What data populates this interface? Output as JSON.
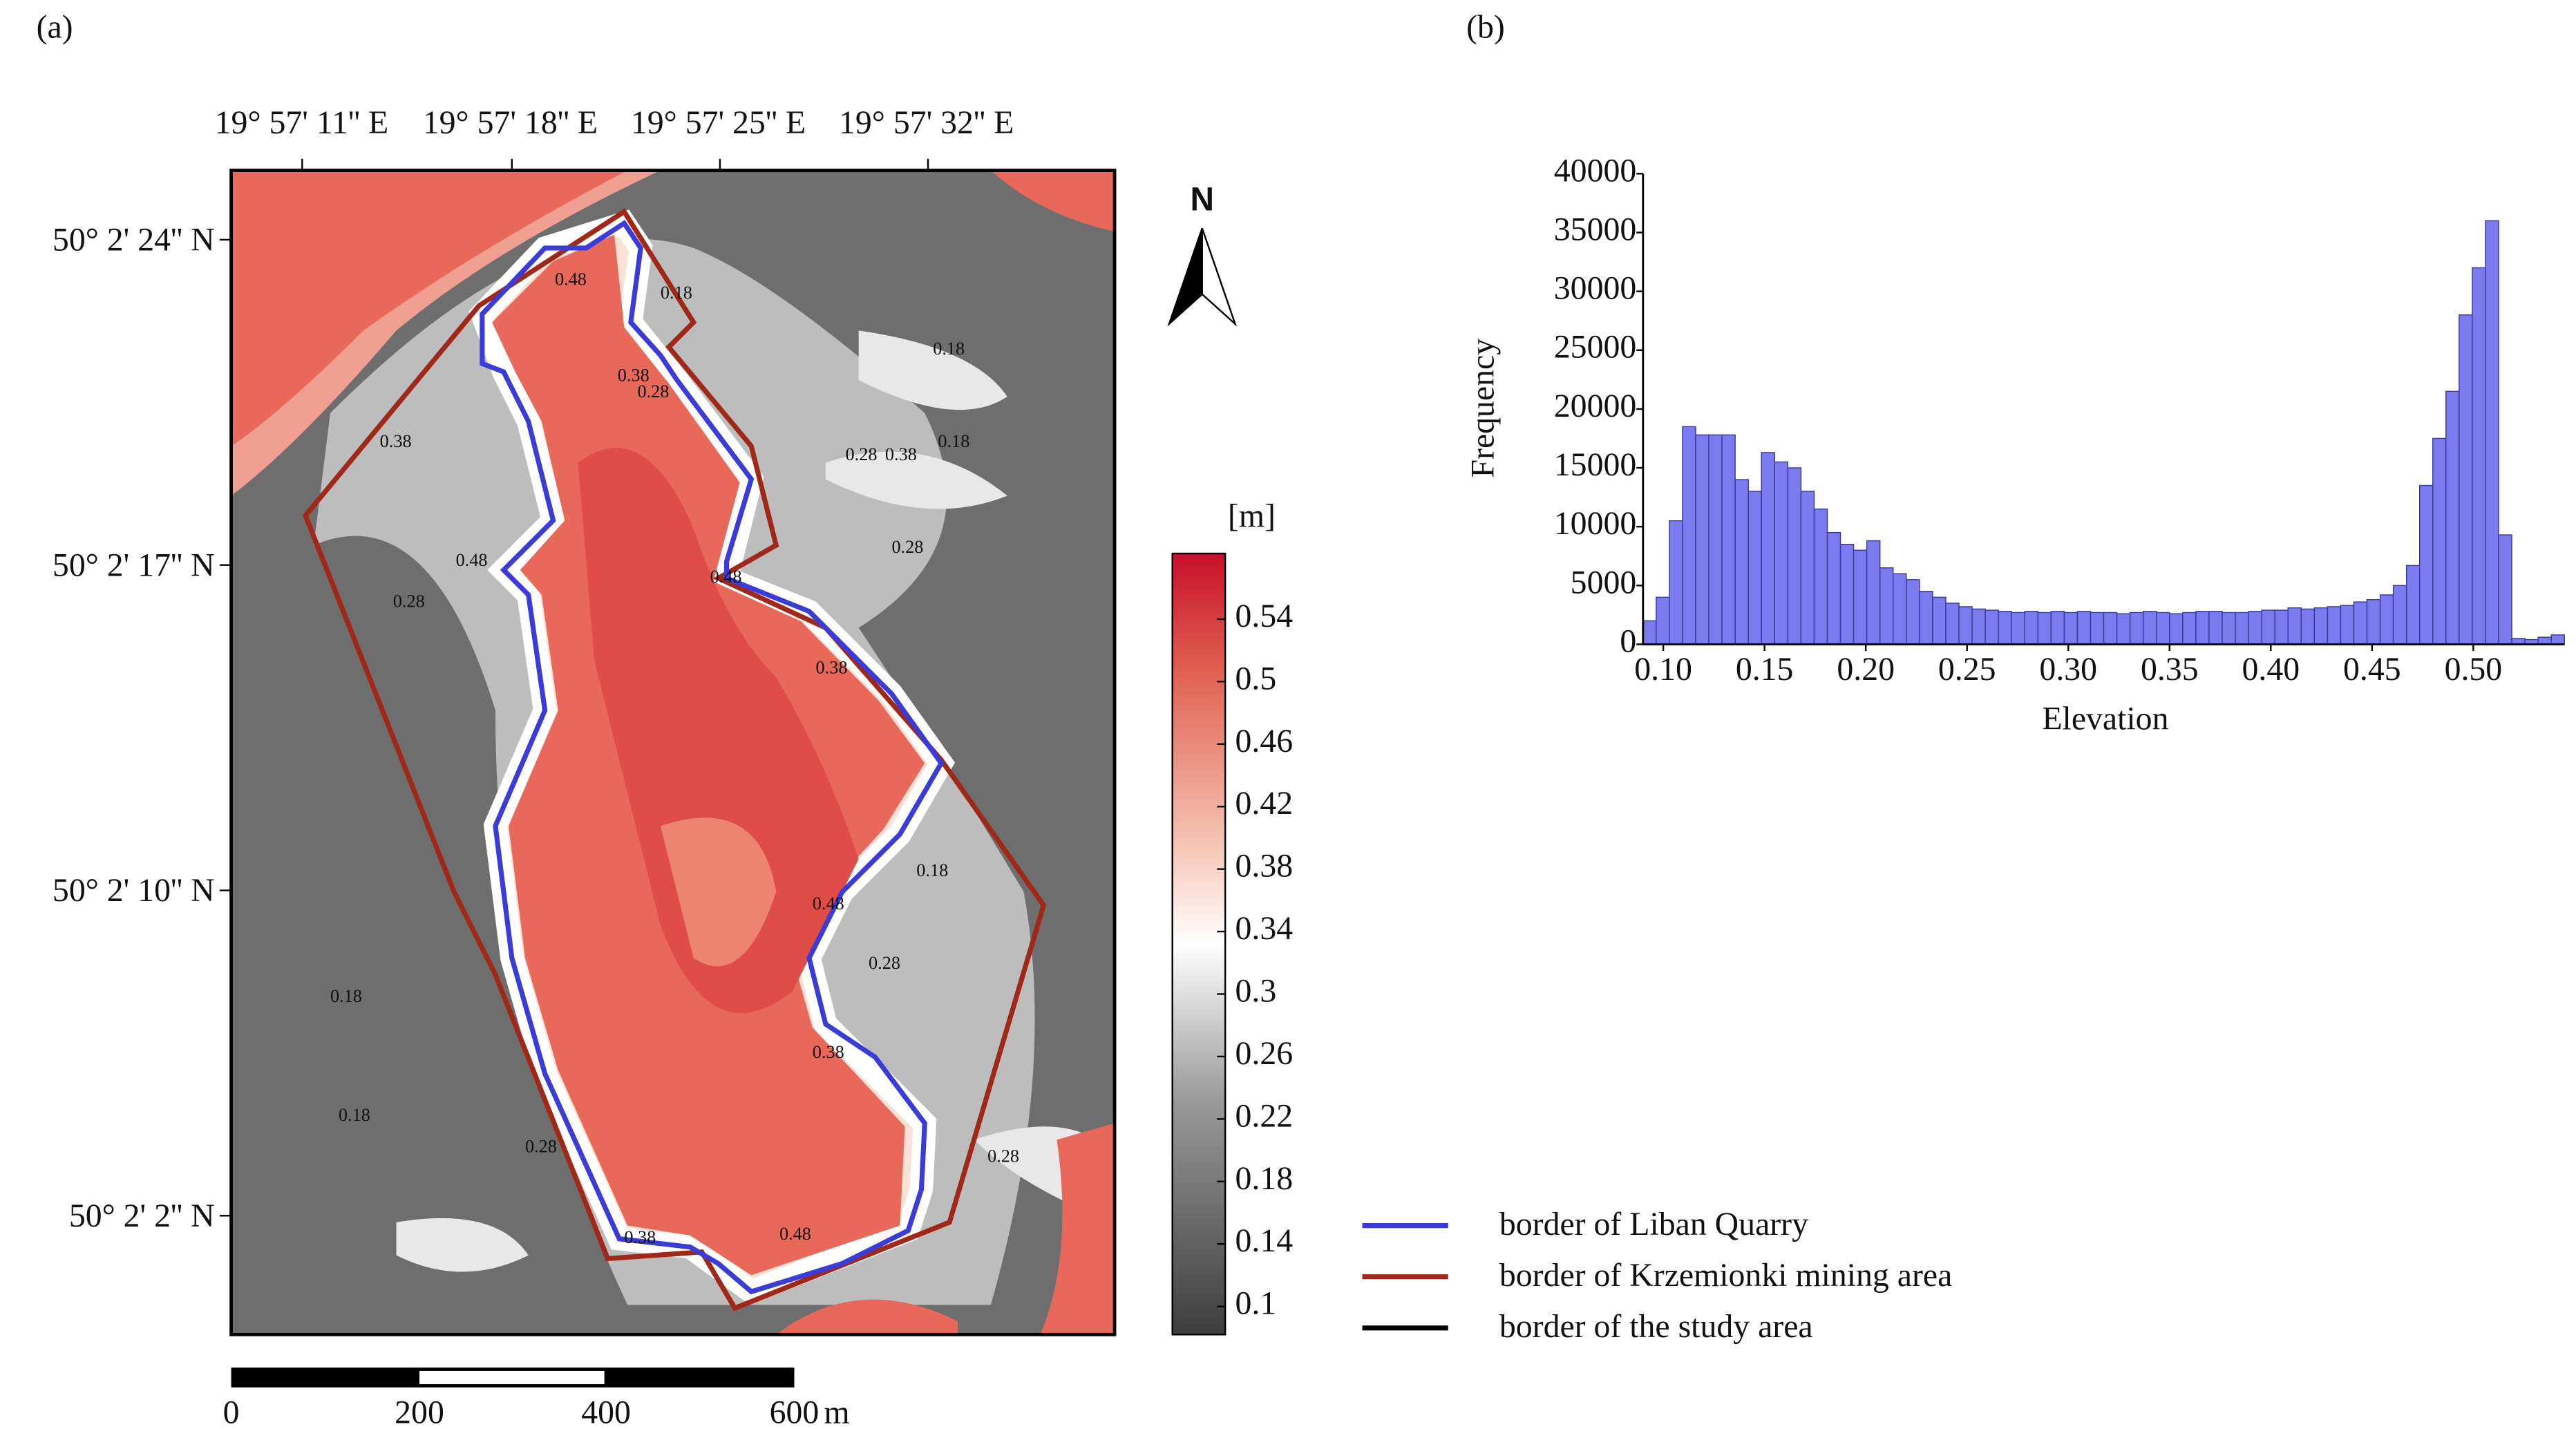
{
  "chart_data": {
    "type": "histogram",
    "panel": "(b)",
    "x_label": "Elevation",
    "y_label": "Frequency",
    "bins": [
      0.09,
      0.0965,
      0.103,
      0.1095,
      0.116,
      0.1225,
      0.129,
      0.1355,
      0.142,
      0.1485,
      0.155,
      0.1615,
      0.168,
      0.1745,
      0.181,
      0.1875,
      0.194,
      0.2005,
      0.207,
      0.2135,
      0.22,
      0.2265,
      0.233,
      0.2395,
      0.246,
      0.2525,
      0.259,
      0.2655,
      0.272,
      0.2785,
      0.285,
      0.2915,
      0.298,
      0.3045,
      0.311,
      0.3175,
      0.324,
      0.3305,
      0.337,
      0.3435,
      0.35,
      0.3565,
      0.363,
      0.3695,
      0.376,
      0.3825,
      0.389,
      0.3955,
      0.402,
      0.4085,
      0.415,
      0.4215,
      0.428,
      0.4345,
      0.441,
      0.4475,
      0.454,
      0.4605,
      0.467,
      0.4735,
      0.48,
      0.4865,
      0.493,
      0.4995,
      0.506,
      0.5125,
      0.519,
      0.5255,
      0.532,
      0.5385,
      0.545
    ],
    "values": [
      2000,
      4000,
      10500,
      18500,
      17800,
      17800,
      17800,
      14000,
      13000,
      16300,
      15500,
      15000,
      13000,
      11500,
      9500,
      8500,
      8000,
      8800,
      6500,
      6000,
      5500,
      4500,
      4000,
      3500,
      3200,
      3000,
      2900,
      2800,
      2700,
      2800,
      2700,
      2800,
      2700,
      2800,
      2700,
      2700,
      2600,
      2700,
      2800,
      2700,
      2600,
      2700,
      2800,
      2800,
      2700,
      2700,
      2800,
      2900,
      2900,
      3100,
      3000,
      3100,
      3200,
      3300,
      3600,
      3800,
      4200,
      5000,
      6700,
      13500,
      17500,
      21500,
      28000,
      32000,
      36000,
      9300,
      500,
      400,
      600,
      800
    ],
    "color": "#7b7bef",
    "xlim": [
      0.09,
      0.545
    ],
    "xticks": [
      {
        "value": 0.1,
        "label": "0.10"
      },
      {
        "value": 0.15,
        "label": "0.15"
      },
      {
        "value": 0.2,
        "label": "0.20"
      },
      {
        "value": 0.25,
        "label": "0.25"
      },
      {
        "value": 0.3,
        "label": "0.30"
      },
      {
        "value": 0.35,
        "label": "0.35"
      },
      {
        "value": 0.4,
        "label": "0.40"
      },
      {
        "value": 0.45,
        "label": "0.45"
      },
      {
        "value": 0.5,
        "label": "0.50"
      }
    ],
    "ylim": [
      0,
      40000
    ],
    "yticks": [
      0,
      5000,
      10000,
      15000,
      20000,
      25000,
      30000,
      35000,
      40000
    ]
  },
  "map": {
    "panel": "(a)",
    "longitudes": [
      "19° 57' 11'' E",
      "19° 57' 18'' E",
      "19° 57' 25'' E",
      "19° 57' 32'' E"
    ],
    "latitudes": [
      "50° 2' 24'' N",
      "50° 2' 17'' N",
      "50° 2' 10'' N",
      "50° 2' 2'' N"
    ],
    "north": "N",
    "colorbar": {
      "unit": "[m]",
      "range": [
        0.082,
        0.582
      ],
      "ticks": [
        0.1,
        0.14,
        0.18,
        0.22,
        0.26,
        0.3,
        0.34,
        0.38,
        0.42,
        0.46,
        0.5,
        0.54
      ]
    },
    "scale_bar": {
      "ticks": [
        "0",
        "200",
        "400",
        "600"
      ],
      "unit": "m"
    },
    "contour_labels": [
      "0.48",
      "0.18",
      "0.38",
      "0.28",
      "0.38",
      "0.28",
      "0.18",
      "0.28",
      "0.48",
      "0.48",
      "0.38",
      "0.28",
      "0.38",
      "0.18",
      "0.48",
      "0.28",
      "0.18",
      "0.38",
      "0.18",
      "0.28",
      "0.18",
      "0.48",
      "0.38",
      "0.28"
    ],
    "legend": [
      {
        "name": "border of Liban Quarry",
        "color": "#3b3bd8"
      },
      {
        "name": "border of Krzemionki mining area",
        "color": "#a02818"
      },
      {
        "name": "border of the study area",
        "color": "#000000"
      }
    ]
  }
}
